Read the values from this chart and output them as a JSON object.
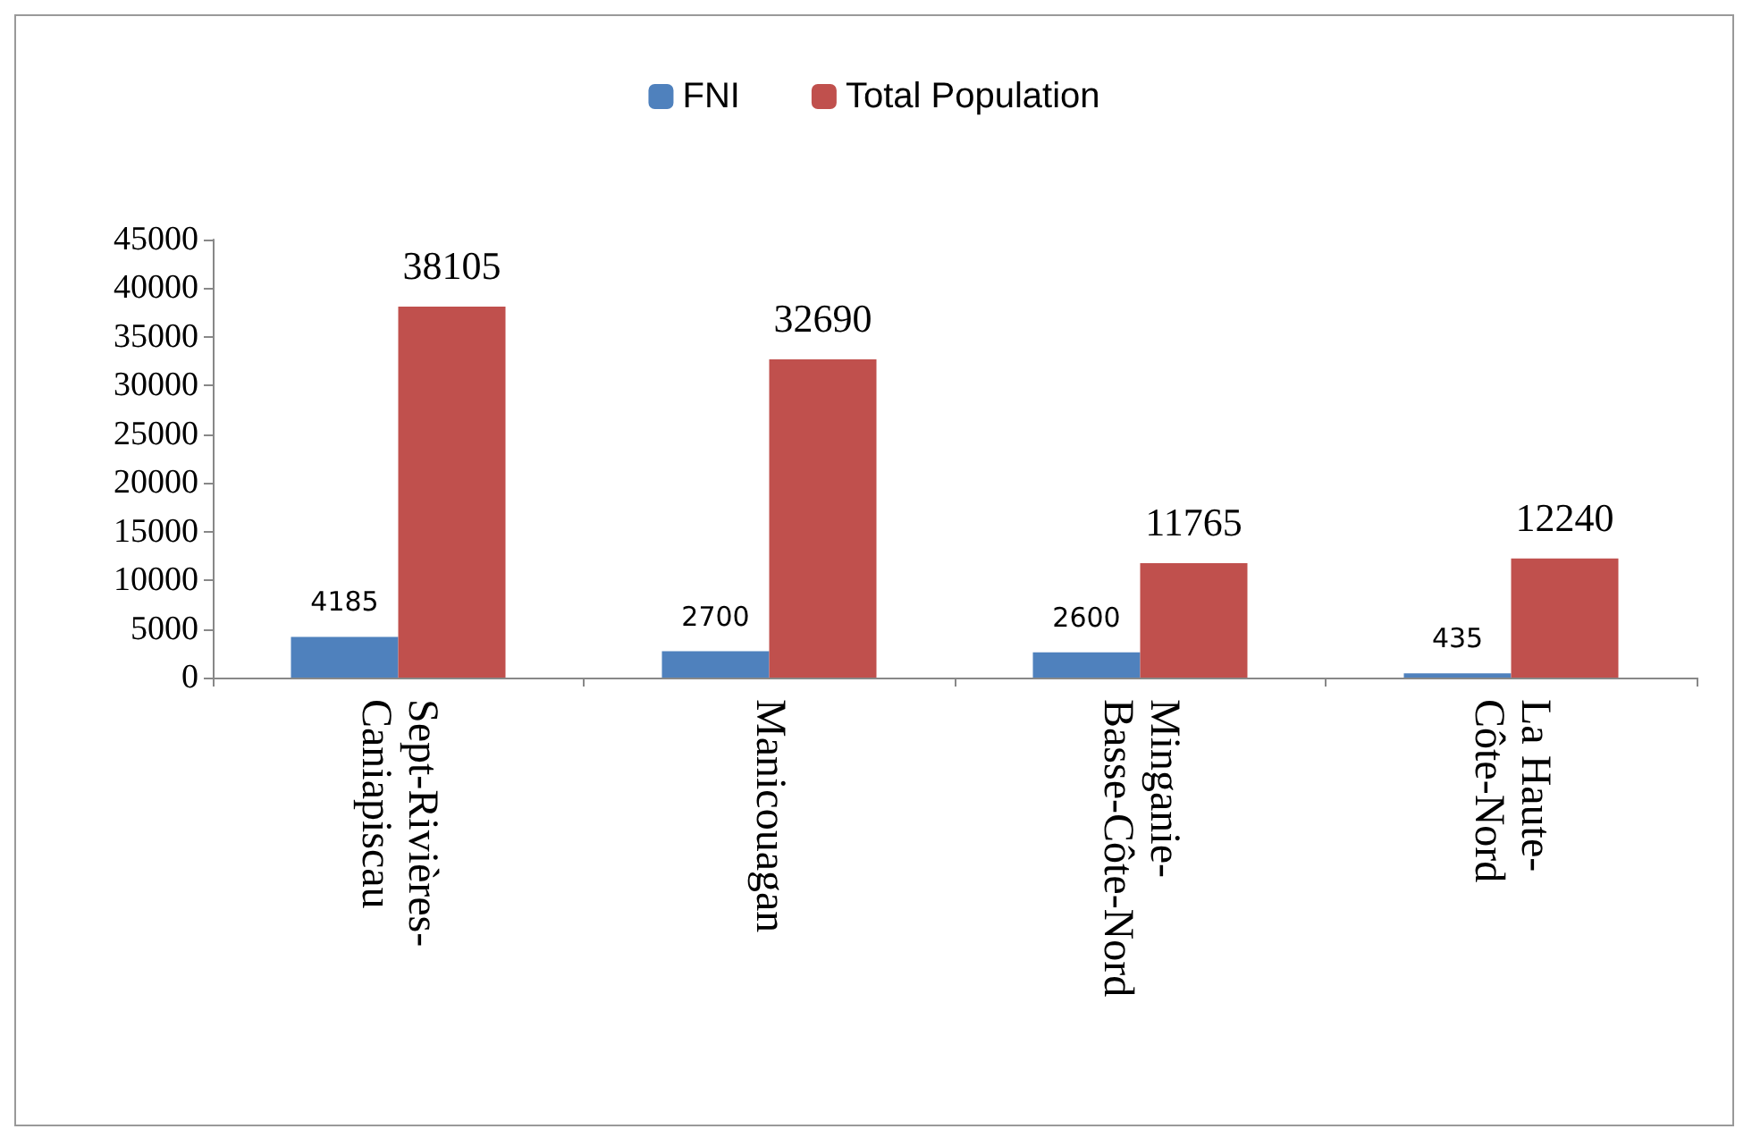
{
  "chart_data": {
    "type": "bar",
    "categories": [
      "Sept-Rivières-\nCaniapiscau",
      "Manicouagan",
      "Minganie-\nBasse-Côte-Nord",
      "La Haute-\nCôte-Nord"
    ],
    "series": [
      {
        "name": "FNI",
        "color": "#4f81bd",
        "values": [
          4185,
          2700,
          2600,
          435
        ]
      },
      {
        "name": "Total Population",
        "color": "#c0504d",
        "values": [
          38105,
          32690,
          11765,
          12240
        ]
      }
    ],
    "ylim": [
      0,
      45000
    ],
    "yticks": [
      0,
      5000,
      10000,
      15000,
      20000,
      25000,
      30000,
      35000,
      40000,
      45000
    ],
    "data_labels": true,
    "legend": "top",
    "grid": false
  }
}
